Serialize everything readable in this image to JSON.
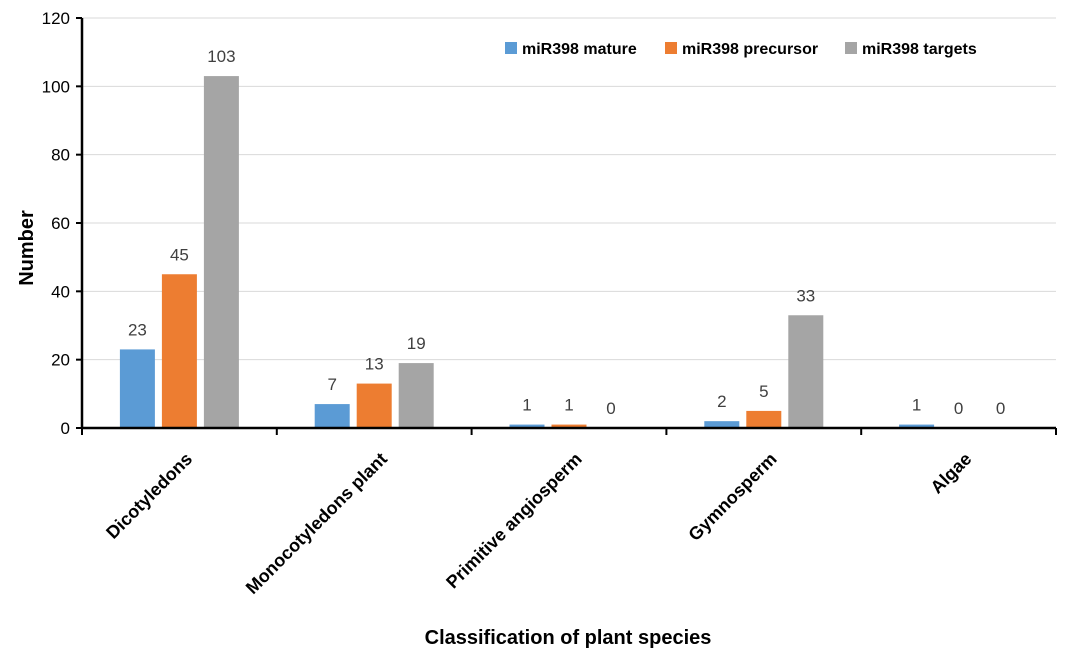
{
  "chart_data": {
    "type": "bar",
    "title": "",
    "xlabel": "Classification of plant species",
    "ylabel": "Number",
    "ylim": [
      0,
      120
    ],
    "yticks": [
      0,
      20,
      40,
      60,
      80,
      100,
      120
    ],
    "grid": true,
    "legend_position": "top-right",
    "categories": [
      "Dicotyledons",
      "Monocotyledons plant",
      "Primitive angiosperm",
      "Gymnosperm",
      "Algae"
    ],
    "series": [
      {
        "name": "miR398 mature",
        "color": "#5b9bd5",
        "values": [
          23,
          7,
          1,
          2,
          1
        ]
      },
      {
        "name": "miR398 precursor",
        "color": "#ed7d31",
        "values": [
          45,
          13,
          1,
          5,
          0
        ]
      },
      {
        "name": "miR398 targets",
        "color": "#a5a5a5",
        "values": [
          103,
          19,
          0,
          33,
          0
        ]
      }
    ]
  }
}
